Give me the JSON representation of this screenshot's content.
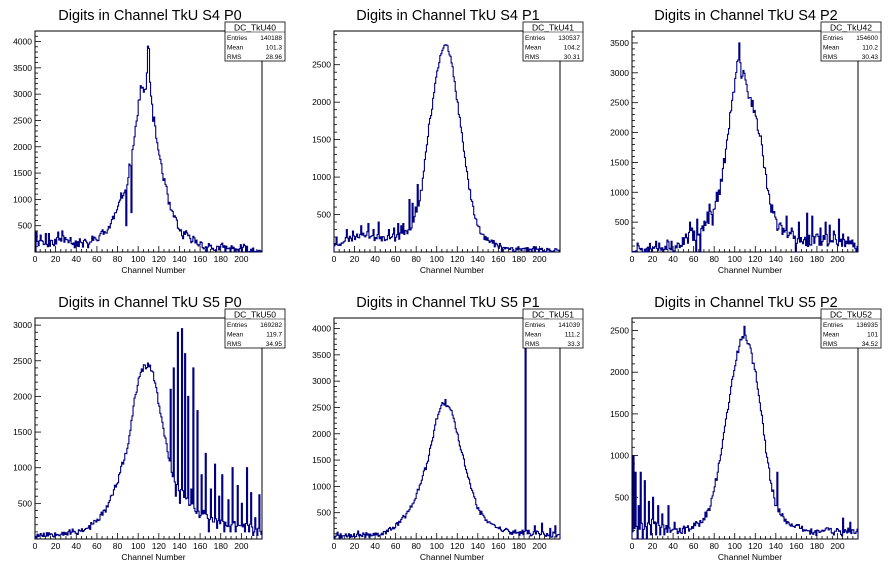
{
  "page": {
    "background": "#ffffff",
    "line_color": "#000080"
  },
  "chart_data": [
    {
      "type": "histogram",
      "title": "Digits in Channel TkU S4 P0",
      "xlabel": "Channel Number",
      "xlim": [
        0,
        220
      ],
      "ylim": [
        0,
        4200
      ],
      "xticks": [
        0,
        20,
        40,
        60,
        80,
        100,
        120,
        140,
        160,
        180,
        200
      ],
      "yticks": [
        500,
        1000,
        1500,
        2000,
        2500,
        3000,
        3500,
        4000
      ],
      "stats": {
        "name": "DC_TkU40",
        "rows": [
          {
            "label": "Entries",
            "value": "140188"
          },
          {
            "label": "Mean",
            "value": "101.3"
          },
          {
            "label": "RMS",
            "value": "28.96"
          }
        ]
      },
      "profile": [
        [
          0,
          0
        ],
        [
          5,
          300
        ],
        [
          10,
          100
        ],
        [
          20,
          200
        ],
        [
          30,
          300
        ],
        [
          40,
          150
        ],
        [
          50,
          150
        ],
        [
          60,
          250
        ],
        [
          70,
          400
        ],
        [
          80,
          800
        ],
        [
          90,
          1400
        ],
        [
          95,
          2000
        ],
        [
          100,
          2700
        ],
        [
          103,
          3200
        ],
        [
          106,
          3000
        ],
        [
          108,
          3100
        ],
        [
          110,
          4150
        ],
        [
          112,
          3000
        ],
        [
          115,
          2500
        ],
        [
          120,
          1900
        ],
        [
          125,
          1400
        ],
        [
          130,
          900
        ],
        [
          140,
          400
        ],
        [
          150,
          250
        ],
        [
          160,
          150
        ],
        [
          170,
          80
        ],
        [
          180,
          60
        ],
        [
          200,
          40
        ],
        [
          218,
          20
        ]
      ],
      "spikes": [
        [
          1,
          380
        ],
        [
          10,
          350
        ],
        [
          13,
          350
        ],
        [
          22,
          380
        ],
        [
          26,
          400
        ],
        [
          43,
          250
        ],
        [
          55,
          300
        ],
        [
          63,
          350
        ],
        [
          88,
          500
        ],
        [
          93,
          750
        ]
      ],
      "noise": 130,
      "seed": 11
    },
    {
      "type": "histogram",
      "title": "Digits in Channel TkU S4 P1",
      "xlabel": "Channel Number",
      "xlim": [
        0,
        220
      ],
      "ylim": [
        0,
        2950
      ],
      "xticks": [
        0,
        20,
        40,
        60,
        80,
        100,
        120,
        140,
        160,
        180,
        200
      ],
      "yticks": [
        500,
        1000,
        1500,
        2000,
        2500
      ],
      "stats": {
        "name": "DC_TkU41",
        "rows": [
          {
            "label": "Entries",
            "value": "130537"
          },
          {
            "label": "Mean",
            "value": "104.2"
          },
          {
            "label": "RMS",
            "value": "30.31"
          }
        ]
      },
      "profile": [
        [
          0,
          100
        ],
        [
          10,
          150
        ],
        [
          20,
          200
        ],
        [
          30,
          250
        ],
        [
          40,
          200
        ],
        [
          50,
          200
        ],
        [
          60,
          200
        ],
        [
          70,
          250
        ],
        [
          78,
          400
        ],
        [
          82,
          600
        ],
        [
          86,
          900
        ],
        [
          90,
          1400
        ],
        [
          95,
          1900
        ],
        [
          100,
          2400
        ],
        [
          105,
          2700
        ],
        [
          110,
          2800
        ],
        [
          115,
          2500
        ],
        [
          120,
          2000
        ],
        [
          125,
          1500
        ],
        [
          130,
          1000
        ],
        [
          135,
          600
        ],
        [
          140,
          350
        ],
        [
          150,
          150
        ],
        [
          160,
          80
        ],
        [
          170,
          50
        ],
        [
          180,
          40
        ],
        [
          200,
          30
        ],
        [
          218,
          20
        ]
      ],
      "spikes": [
        [
          2,
          200
        ],
        [
          12,
          300
        ],
        [
          18,
          280
        ],
        [
          26,
          350
        ],
        [
          33,
          380
        ],
        [
          38,
          300
        ],
        [
          43,
          400
        ],
        [
          53,
          300
        ],
        [
          58,
          320
        ],
        [
          62,
          380
        ],
        [
          65,
          350
        ],
        [
          67,
          380
        ],
        [
          73,
          700
        ],
        [
          76,
          650
        ],
        [
          79,
          600
        ],
        [
          81,
          900
        ]
      ],
      "noise": 60,
      "seed": 23
    },
    {
      "type": "histogram",
      "title": "Digits in Channel TkU S4 P2",
      "xlabel": "Channel Number",
      "xlim": [
        0,
        220
      ],
      "ylim": [
        0,
        3700
      ],
      "xticks": [
        0,
        20,
        40,
        60,
        80,
        100,
        120,
        140,
        160,
        180,
        200
      ],
      "yticks": [
        500,
        1000,
        1500,
        2000,
        2500,
        3000,
        3500
      ],
      "stats": {
        "name": "DC_TkU42",
        "rows": [
          {
            "label": "Entries",
            "value": "154600"
          },
          {
            "label": "Mean",
            "value": "110.2"
          },
          {
            "label": "RMS",
            "value": "30.43"
          }
        ]
      },
      "profile": [
        [
          0,
          50
        ],
        [
          20,
          100
        ],
        [
          40,
          100
        ],
        [
          50,
          150
        ],
        [
          60,
          250
        ],
        [
          70,
          450
        ],
        [
          80,
          800
        ],
        [
          85,
          1000
        ],
        [
          90,
          1500
        ],
        [
          95,
          2200
        ],
        [
          100,
          2800
        ],
        [
          103,
          3200
        ],
        [
          106,
          3000
        ],
        [
          110,
          2900
        ],
        [
          115,
          2600
        ],
        [
          120,
          2300
        ],
        [
          125,
          1900
        ],
        [
          130,
          1300
        ],
        [
          135,
          800
        ],
        [
          140,
          500
        ],
        [
          150,
          300
        ],
        [
          160,
          250
        ],
        [
          170,
          200
        ],
        [
          180,
          200
        ],
        [
          200,
          200
        ],
        [
          218,
          50
        ]
      ],
      "spikes": [
        [
          5,
          150
        ],
        [
          15,
          80
        ],
        [
          38,
          180
        ],
        [
          52,
          300
        ],
        [
          56,
          500
        ],
        [
          58,
          400
        ],
        [
          60,
          350
        ],
        [
          63,
          550
        ],
        [
          72,
          500
        ],
        [
          75,
          800
        ],
        [
          78,
          450
        ],
        [
          104,
          3500
        ],
        [
          150,
          600
        ],
        [
          155,
          400
        ],
        [
          162,
          500
        ],
        [
          170,
          650
        ],
        [
          175,
          600
        ],
        [
          180,
          300
        ],
        [
          183,
          400
        ],
        [
          188,
          500
        ],
        [
          192,
          450
        ],
        [
          196,
          350
        ],
        [
          201,
          550
        ],
        [
          205,
          300
        ],
        [
          210,
          250
        ],
        [
          214,
          200
        ]
      ],
      "cuts": [
        [
          62,
          0
        ],
        [
          66,
          0
        ],
        [
          159,
          0
        ]
      ],
      "noise": 150,
      "seed": 37
    },
    {
      "type": "histogram",
      "title": "Digits in Channel TkU S5 P0",
      "xlabel": "Channel Number",
      "xlim": [
        0,
        220
      ],
      "ylim": [
        0,
        3100
      ],
      "xticks": [
        0,
        20,
        40,
        60,
        80,
        100,
        120,
        140,
        160,
        180,
        200
      ],
      "yticks": [
        500,
        1000,
        1500,
        2000,
        2500,
        3000
      ],
      "stats": {
        "name": "DC_TkU50",
        "rows": [
          {
            "label": "Entries",
            "value": "169282"
          },
          {
            "label": "Mean",
            "value": "119.7"
          },
          {
            "label": "RMS",
            "value": "34.95"
          }
        ]
      },
      "profile": [
        [
          0,
          50
        ],
        [
          20,
          80
        ],
        [
          40,
          100
        ],
        [
          50,
          150
        ],
        [
          60,
          250
        ],
        [
          70,
          450
        ],
        [
          80,
          800
        ],
        [
          90,
          1300
        ],
        [
          95,
          1800
        ],
        [
          100,
          2200
        ],
        [
          105,
          2400
        ],
        [
          110,
          2450
        ],
        [
          115,
          2300
        ],
        [
          120,
          1900
        ],
        [
          125,
          1500
        ],
        [
          130,
          1100
        ],
        [
          135,
          800
        ],
        [
          140,
          700
        ],
        [
          150,
          500
        ],
        [
          160,
          350
        ],
        [
          170,
          300
        ],
        [
          180,
          250
        ],
        [
          190,
          200
        ],
        [
          200,
          200
        ],
        [
          210,
          150
        ],
        [
          218,
          100
        ]
      ],
      "spikes": [
        [
          131,
          2100
        ],
        [
          134,
          2400
        ],
        [
          138,
          2900
        ],
        [
          142,
          2950
        ],
        [
          145,
          2600
        ],
        [
          148,
          2000
        ],
        [
          153,
          2400
        ],
        [
          157,
          1800
        ],
        [
          161,
          900
        ],
        [
          165,
          1200
        ],
        [
          170,
          700
        ],
        [
          174,
          1050
        ],
        [
          178,
          600
        ],
        [
          181,
          900
        ],
        [
          187,
          550
        ],
        [
          191,
          1000
        ],
        [
          196,
          750
        ],
        [
          200,
          500
        ],
        [
          205,
          1000
        ],
        [
          209,
          650
        ],
        [
          213,
          300
        ],
        [
          217,
          620
        ]
      ],
      "cuts": [
        [
          136,
          600
        ],
        [
          140,
          500
        ],
        [
          151,
          700
        ],
        [
          159,
          300
        ],
        [
          163,
          400
        ],
        [
          168,
          100
        ],
        [
          176,
          150
        ],
        [
          183,
          100
        ],
        [
          189,
          100
        ],
        [
          194,
          100
        ],
        [
          203,
          100
        ],
        [
          207,
          100
        ],
        [
          211,
          50
        ],
        [
          215,
          50
        ]
      ],
      "noise": 60,
      "seed": 53
    },
    {
      "type": "histogram",
      "title": "Digits in Channel TkU S5 P1",
      "xlabel": "Channel Number",
      "xlim": [
        0,
        220
      ],
      "ylim": [
        0,
        4200
      ],
      "xticks": [
        0,
        20,
        40,
        60,
        80,
        100,
        120,
        140,
        160,
        180,
        200
      ],
      "yticks": [
        500,
        1000,
        1500,
        2000,
        2500,
        3000,
        3500,
        4000
      ],
      "stats": {
        "name": "DC_TkU51",
        "rows": [
          {
            "label": "Entries",
            "value": "141039"
          },
          {
            "label": "Mean",
            "value": "111.2"
          },
          {
            "label": "RMS",
            "value": "33.3"
          }
        ]
      },
      "profile": [
        [
          0,
          50
        ],
        [
          20,
          60
        ],
        [
          40,
          80
        ],
        [
          50,
          120
        ],
        [
          60,
          250
        ],
        [
          70,
          450
        ],
        [
          80,
          800
        ],
        [
          90,
          1400
        ],
        [
          95,
          1800
        ],
        [
          100,
          2300
        ],
        [
          105,
          2550
        ],
        [
          110,
          2550
        ],
        [
          115,
          2400
        ],
        [
          120,
          2000
        ],
        [
          125,
          1600
        ],
        [
          130,
          1200
        ],
        [
          140,
          600
        ],
        [
          150,
          300
        ],
        [
          160,
          200
        ],
        [
          170,
          150
        ],
        [
          180,
          120
        ],
        [
          190,
          100
        ],
        [
          200,
          100
        ],
        [
          218,
          80
        ]
      ],
      "spikes": [
        [
          3,
          130
        ],
        [
          14,
          100
        ],
        [
          23,
          150
        ],
        [
          31,
          120
        ],
        [
          108,
          2650
        ],
        [
          186,
          3700
        ],
        [
          195,
          250
        ],
        [
          202,
          300
        ],
        [
          210,
          200
        ],
        [
          215,
          250
        ]
      ],
      "noise": 70,
      "seed": 71
    },
    {
      "type": "histogram",
      "title": "Digits in Channel TkU S5 P2",
      "xlabel": "Channel Number",
      "xlim": [
        0,
        220
      ],
      "ylim": [
        0,
        2650
      ],
      "xticks": [
        0,
        20,
        40,
        60,
        80,
        100,
        120,
        140,
        160,
        180,
        200
      ],
      "yticks": [
        500,
        1000,
        1500,
        2000,
        2500
      ],
      "stats": {
        "name": "DC_TkU52",
        "rows": [
          {
            "label": "Entries",
            "value": "136935"
          },
          {
            "label": "Mean",
            "value": "101"
          },
          {
            "label": "RMS",
            "value": "34.52"
          }
        ]
      },
      "profile": [
        [
          0,
          100
        ],
        [
          10,
          150
        ],
        [
          20,
          200
        ],
        [
          30,
          150
        ],
        [
          40,
          100
        ],
        [
          50,
          100
        ],
        [
          60,
          150
        ],
        [
          70,
          250
        ],
        [
          75,
          350
        ],
        [
          80,
          600
        ],
        [
          85,
          900
        ],
        [
          90,
          1300
        ],
        [
          95,
          1700
        ],
        [
          100,
          2100
        ],
        [
          105,
          2350
        ],
        [
          110,
          2450
        ],
        [
          115,
          2300
        ],
        [
          120,
          2000
        ],
        [
          125,
          1600
        ],
        [
          130,
          1100
        ],
        [
          135,
          700
        ],
        [
          140,
          400
        ],
        [
          150,
          200
        ],
        [
          160,
          150
        ],
        [
          170,
          100
        ],
        [
          180,
          100
        ],
        [
          200,
          100
        ],
        [
          218,
          80
        ]
      ],
      "spikes": [
        [
          1,
          1000
        ],
        [
          3,
          800
        ],
        [
          6,
          400
        ],
        [
          8,
          800
        ],
        [
          12,
          700
        ],
        [
          16,
          450
        ],
        [
          20,
          500
        ],
        [
          25,
          400
        ],
        [
          29,
          300
        ],
        [
          35,
          400
        ],
        [
          41,
          200
        ],
        [
          109,
          2550
        ],
        [
          141,
          800
        ],
        [
          205,
          250
        ],
        [
          212,
          200
        ]
      ],
      "cuts": [
        [
          5,
          0
        ],
        [
          10,
          0
        ],
        [
          14,
          0
        ],
        [
          18,
          50
        ],
        [
          23,
          50
        ],
        [
          27,
          50
        ],
        [
          31,
          50
        ],
        [
          38,
          100
        ]
      ],
      "noise": 60,
      "seed": 89
    }
  ]
}
